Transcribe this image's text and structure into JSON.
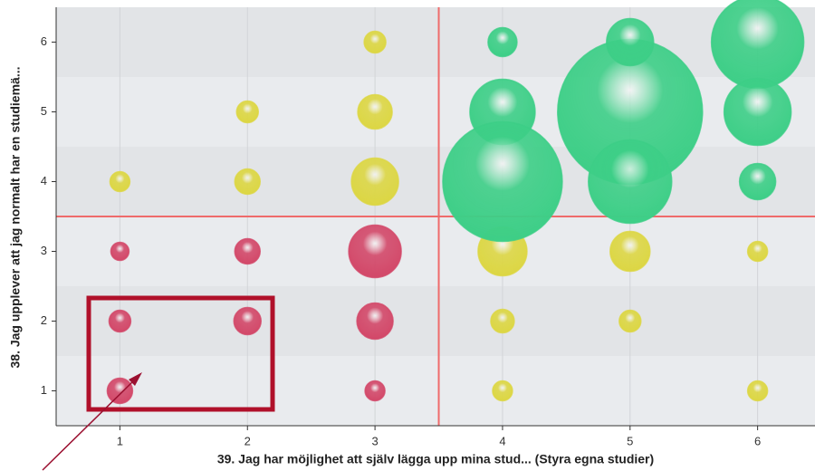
{
  "chart_data": {
    "type": "bubble",
    "x_label": "39. Jag har möjlighet att själv lägga upp mina stud... (Styra egna studier)",
    "y_label": "38. Jag upplever att jag normalt har en studiemä...",
    "xlim": [
      0.5,
      6.45
    ],
    "ylim": [
      0.5,
      6.5
    ],
    "xticks": [
      1,
      2,
      3,
      4,
      5,
      6
    ],
    "yticks": [
      1,
      2,
      3,
      4,
      5,
      6
    ],
    "grid": true,
    "reference_lines": {
      "x": 3.5,
      "y": 3.5,
      "color": "#ef6b6b"
    },
    "series": [
      {
        "color": "#d94a6c",
        "x": [
          1,
          1,
          1,
          2,
          2,
          3,
          3,
          3
        ],
        "y": [
          3,
          2,
          1,
          3,
          2,
          3,
          2,
          1
        ],
        "size": [
          10,
          12,
          14,
          14,
          15,
          29,
          20,
          11
        ]
      },
      {
        "color": "#e3dd45",
        "x": [
          1,
          2,
          2,
          3,
          3,
          3,
          4,
          4,
          4,
          5,
          5,
          6,
          6
        ],
        "y": [
          4,
          5,
          4,
          6,
          5,
          4,
          3,
          2,
          1,
          3,
          2,
          3,
          1
        ],
        "size": [
          11,
          12,
          14,
          12,
          19,
          26,
          27,
          13,
          11,
          22,
          12,
          11,
          11
        ]
      },
      {
        "color": "#3fd58b",
        "x": [
          5,
          4,
          4,
          5,
          5,
          6,
          6,
          4,
          6
        ],
        "y": [
          5,
          5,
          4,
          4,
          6,
          6,
          5,
          6,
          4
        ],
        "size": [
          80,
          36,
          66,
          46,
          26,
          51,
          37,
          16,
          20
        ]
      }
    ]
  }
}
